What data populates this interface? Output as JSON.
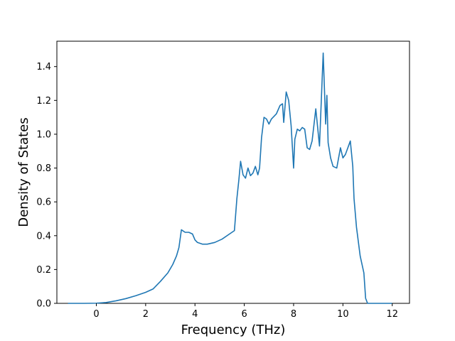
{
  "chart_data": {
    "type": "line",
    "title": "",
    "xlabel": "Frequency (THz)",
    "ylabel": "Density of States",
    "xlim": [
      -1.6,
      12.7
    ],
    "ylim": [
      0.0,
      1.55
    ],
    "xticks": [
      0,
      2,
      4,
      6,
      8,
      10,
      12
    ],
    "yticks": [
      0.0,
      0.2,
      0.4,
      0.6,
      0.8,
      1.0,
      1.2,
      1.4
    ],
    "xtick_labels": [
      "0",
      "2",
      "4",
      "6",
      "8",
      "10",
      "12"
    ],
    "ytick_labels": [
      "0.0",
      "0.2",
      "0.4",
      "0.6",
      "0.8",
      "1.0",
      "1.2",
      "1.4"
    ],
    "grid": false,
    "legend": false,
    "series": [
      {
        "color": "#1f77b4",
        "x": [
          -1.15,
          -0.5,
          0.0,
          0.4,
          0.8,
          1.2,
          1.6,
          2.0,
          2.3,
          2.6,
          2.9,
          3.1,
          3.25,
          3.35,
          3.45,
          3.6,
          3.75,
          3.9,
          4.0,
          4.1,
          4.3,
          4.5,
          4.8,
          5.1,
          5.4,
          5.6,
          5.7,
          5.78,
          5.85,
          5.95,
          6.05,
          6.15,
          6.25,
          6.35,
          6.45,
          6.55,
          6.62,
          6.7,
          6.8,
          6.9,
          7.0,
          7.1,
          7.3,
          7.45,
          7.55,
          7.6,
          7.7,
          7.8,
          7.9,
          8.0,
          8.05,
          8.15,
          8.25,
          8.35,
          8.45,
          8.55,
          8.65,
          8.75,
          8.9,
          9.05,
          9.2,
          9.3,
          9.35,
          9.4,
          9.5,
          9.6,
          9.75,
          9.9,
          10.0,
          10.1,
          10.2,
          10.3,
          10.4,
          10.45,
          10.55,
          10.7,
          10.85,
          10.92,
          11.0,
          11.3,
          12.0
        ],
        "y": [
          0.0,
          0.0,
          0.001,
          0.005,
          0.015,
          0.028,
          0.045,
          0.065,
          0.085,
          0.13,
          0.18,
          0.23,
          0.28,
          0.33,
          0.435,
          0.42,
          0.42,
          0.41,
          0.375,
          0.36,
          0.35,
          0.35,
          0.36,
          0.38,
          0.41,
          0.43,
          0.62,
          0.73,
          0.84,
          0.76,
          0.74,
          0.8,
          0.755,
          0.77,
          0.81,
          0.76,
          0.8,
          0.98,
          1.1,
          1.09,
          1.06,
          1.09,
          1.12,
          1.17,
          1.18,
          1.07,
          1.25,
          1.2,
          1.05,
          0.8,
          0.97,
          1.03,
          1.02,
          1.04,
          1.03,
          0.92,
          0.91,
          0.96,
          1.15,
          0.93,
          1.48,
          1.06,
          1.23,
          0.95,
          0.86,
          0.81,
          0.8,
          0.92,
          0.86,
          0.88,
          0.92,
          0.96,
          0.81,
          0.62,
          0.45,
          0.28,
          0.18,
          0.03,
          0.0,
          0.0,
          0.0
        ]
      }
    ]
  }
}
